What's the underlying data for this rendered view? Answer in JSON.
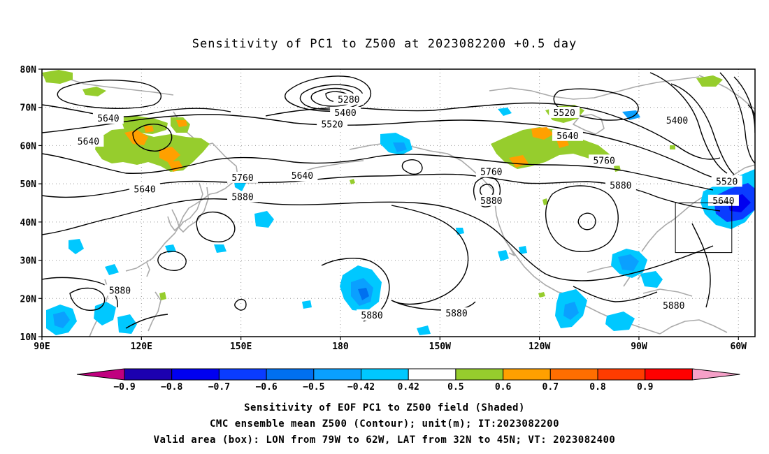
{
  "title": "Sensitivity of PC1 to Z500 at 2023082200 +0.5 day",
  "lat_labels": [
    "80N",
    "70N",
    "60N",
    "50N",
    "40N",
    "30N",
    "20N",
    "10N"
  ],
  "lon_labels": [
    "90E",
    "120E",
    "150E",
    "180",
    "150W",
    "120W",
    "90W",
    "60W"
  ],
  "contour_labels": [
    {
      "text": "5640",
      "lon": 110,
      "lat": 67
    },
    {
      "text": "5640",
      "lon": 104,
      "lat": 61
    },
    {
      "text": "5640",
      "lon": 121,
      "lat": 48.5
    },
    {
      "text": "5640",
      "lon": 168.5,
      "lat": 52
    },
    {
      "text": "5760",
      "lon": 150.5,
      "lat": 51.5
    },
    {
      "text": "5880",
      "lon": 150.5,
      "lat": 46.5
    },
    {
      "text": "5280",
      "lon": 182.5,
      "lat": 72
    },
    {
      "text": "5400",
      "lon": 181.5,
      "lat": 68.5
    },
    {
      "text": "5520",
      "lon": 177.5,
      "lat": 65.5
    },
    {
      "text": "5760",
      "lon": 225.5,
      "lat": 53
    },
    {
      "text": "5880",
      "lon": 225.5,
      "lat": 45.5
    },
    {
      "text": "5520",
      "lon": 247.5,
      "lat": 68.5
    },
    {
      "text": "5640",
      "lon": 248.5,
      "lat": 62.5
    },
    {
      "text": "5760",
      "lon": 259.5,
      "lat": 56
    },
    {
      "text": "5880",
      "lon": 264.5,
      "lat": 49.5
    },
    {
      "text": "5400",
      "lon": 281.5,
      "lat": 66.5
    },
    {
      "text": "5520",
      "lon": 296.5,
      "lat": 50.5
    },
    {
      "text": "5640",
      "lon": 295.5,
      "lat": 45.5
    },
    {
      "text": "5880",
      "lon": 113.5,
      "lat": 22
    },
    {
      "text": "5880",
      "lon": 189.5,
      "lat": 15.5
    },
    {
      "text": "5880",
      "lon": 215,
      "lat": 16
    },
    {
      "text": "5880",
      "lon": 280.5,
      "lat": 18
    }
  ],
  "valid_box": {
    "lon_from": 281,
    "lon_to": 298,
    "lat_from": 32,
    "lat_to": 45
  },
  "colorbar": {
    "labels": [
      "-0.9",
      "-0.8",
      "-0.7",
      "-0.6",
      "-0.5",
      "-0.42",
      "0.42",
      "0.5",
      "0.6",
      "0.7",
      "0.8",
      "0.9"
    ],
    "colors": [
      "#c0007f",
      "#1c00b0",
      "#0000f0",
      "#0a3cff",
      "#0070f0",
      "#0aa0ff",
      "#00c8ff",
      "#ffffff",
      "#96cd2d",
      "#ffa000",
      "#ff6e00",
      "#ff3c00",
      "#ff0000",
      "#f5a0c8"
    ]
  },
  "footer": {
    "line1": "Sensitivity of EOF PC1 to Z500 field (Shaded)",
    "line2": "CMC ensemble mean Z500 (Contour); unit(m); IT:2023082200",
    "line3": "Valid area (box): LON from 79W to 62W, LAT from 32N to 45N; VT: 2023082400"
  }
}
